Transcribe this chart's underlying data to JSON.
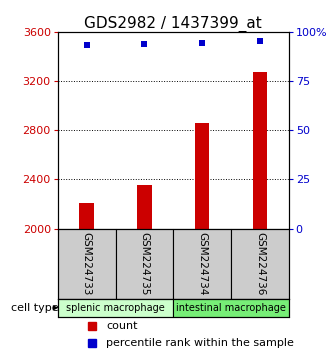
{
  "title": "GDS2982 / 1437399_at",
  "samples": [
    "GSM224733",
    "GSM224735",
    "GSM224734",
    "GSM224736"
  ],
  "counts": [
    2210,
    2355,
    2855,
    3275
  ],
  "percentiles": [
    93.5,
    93.8,
    94.2,
    95.5
  ],
  "ylim_left": [
    2000,
    3600
  ],
  "ylim_right": [
    0,
    100
  ],
  "yticks_left": [
    2000,
    2400,
    2800,
    3200,
    3600
  ],
  "yticks_right": [
    0,
    25,
    50,
    75,
    100
  ],
  "ytick_labels_right": [
    "0",
    "25",
    "50",
    "75",
    "100%"
  ],
  "grid_values": [
    2400,
    2800,
    3200
  ],
  "bar_color": "#cc0000",
  "dot_color": "#0000cc",
  "cell_types": [
    {
      "label": "splenic macrophage",
      "samples": [
        0,
        1
      ],
      "color": "#ccffcc"
    },
    {
      "label": "intestinal macrophage",
      "samples": [
        2,
        3
      ],
      "color": "#77ee77"
    }
  ],
  "sample_box_color": "#cccccc",
  "title_fontsize": 11,
  "axis_label_color_left": "#cc0000",
  "axis_label_color_right": "#0000cc",
  "bar_width": 0.25
}
